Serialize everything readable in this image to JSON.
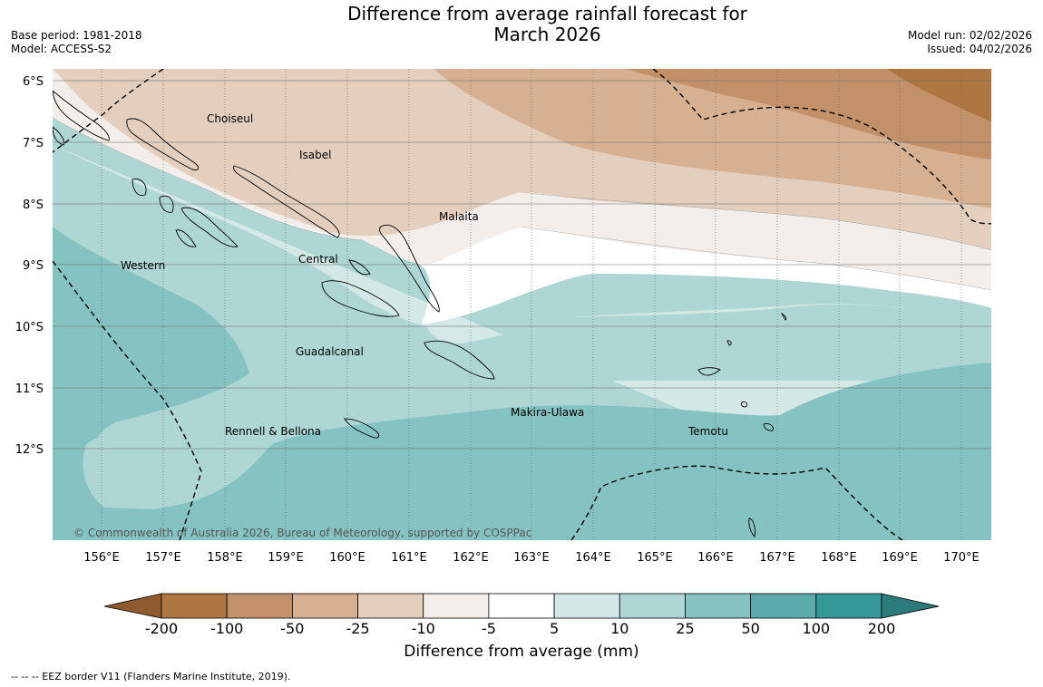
{
  "title": {
    "line1": "Difference from average rainfall forecast for",
    "line2": "March 2026"
  },
  "meta_left": {
    "base_period": "Base period: 1981-2018",
    "model": "Model: ACCESS-S2"
  },
  "meta_right": {
    "model_run": "Model run: 02/02/2026",
    "issued": "Issued: 04/02/2026"
  },
  "map": {
    "lat_labels": [
      "6°S",
      "7°S",
      "8°S",
      "9°S",
      "10°S",
      "11°S",
      "12°S"
    ],
    "lon_labels": [
      "156°E",
      "157°E",
      "158°E",
      "159°E",
      "160°E",
      "161°E",
      "162°E",
      "163°E",
      "164°E",
      "165°E",
      "166°E",
      "167°E",
      "168°E",
      "169°E",
      "170°E"
    ],
    "region_labels": [
      "Choiseul",
      "Isabel",
      "Malaita",
      "Central",
      "Western",
      "Guadalcanal",
      "Rennell & Bellona",
      "Makira-Ulawa",
      "Temotu"
    ],
    "copyright": "© Commonwealth of Australia 2026, Bureau of Meteorology, supported by COSPPac"
  },
  "colorbar": {
    "ticks": [
      "-200",
      "-100",
      "-50",
      "-25",
      "-10",
      "-5",
      "5",
      "10",
      "25",
      "50",
      "100",
      "200"
    ],
    "colors": [
      "#8f5a2d",
      "#ae7641",
      "#c39169",
      "#d6b091",
      "#e4cfbf",
      "#f3eee9",
      "#ffffff",
      "#d4e9e7",
      "#add6d5",
      "#85c3c2",
      "#5caaaa",
      "#349896",
      "#2b7b7a"
    ],
    "title": "Difference from average (mm)"
  },
  "footnote": "--  --  -- EEZ border V11 (Flanders Marine Institute, 2019)."
}
